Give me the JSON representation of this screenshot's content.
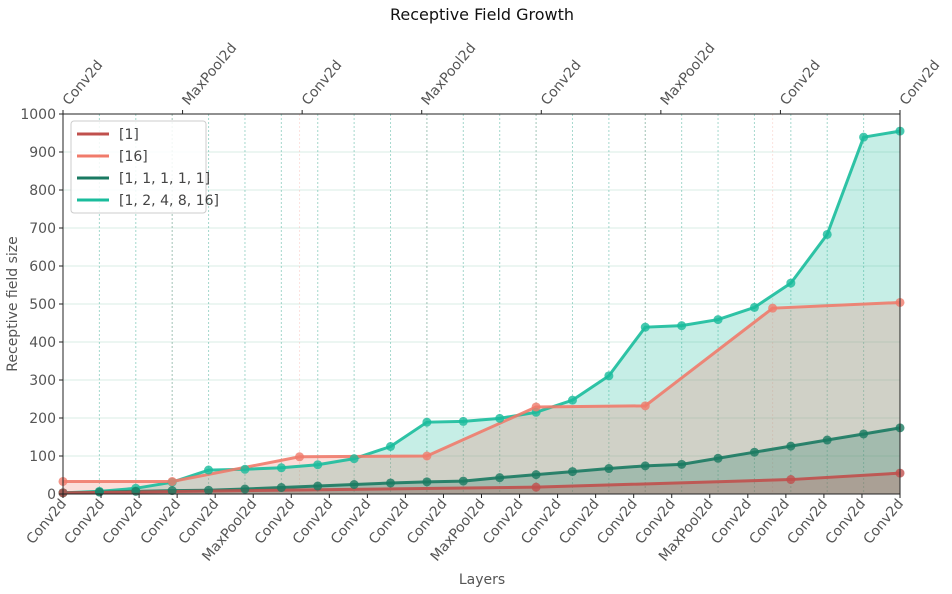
{
  "chart_data": {
    "type": "line",
    "title": "Receptive Field Growth",
    "xlabel": "Layers",
    "ylabel": "Receptive field size",
    "ylim": [
      0,
      1000
    ],
    "yticks": [
      0,
      100,
      200,
      300,
      400,
      500,
      600,
      700,
      800,
      900,
      1000
    ],
    "grid": true,
    "legend_position": "top-left",
    "series": [
      {
        "name": "[1]",
        "color": "#c0504d",
        "x": [
          0,
          13,
          20,
          23
        ],
        "layer_labels": [
          "Conv2d",
          "Conv2d",
          "Conv2d",
          "Conv2d"
        ],
        "values": [
          3,
          18,
          38,
          55
        ]
      },
      {
        "name": "[16]",
        "color": "#f07b6b",
        "x": [
          0,
          3,
          6.5,
          10,
          13,
          16,
          19.5,
          23
        ],
        "layer_labels": [
          "Conv2d",
          "Conv2d",
          "Conv2d",
          "Conv2d",
          "Conv2d",
          "MaxPool2d",
          "Conv2d",
          "Conv2d"
        ],
        "values": [
          33,
          33,
          98,
          100,
          229,
          232,
          489,
          504
        ]
      },
      {
        "name": "[1, 1, 1, 1, 1]",
        "color": "#1a7a62",
        "x": [
          0,
          1,
          2,
          3,
          4,
          5,
          6,
          7,
          8,
          9,
          10,
          11,
          12,
          13,
          14,
          15,
          16,
          17,
          18,
          19,
          20,
          21,
          22,
          23
        ],
        "layer_labels": [
          "Conv2d",
          "Conv2d",
          "Conv2d",
          "Conv2d",
          "MaxPool2d",
          "Conv2d",
          "Conv2d",
          "Conv2d",
          "Conv2d",
          "Conv2d",
          "MaxPool2d",
          "Conv2d",
          "Conv2d",
          "Conv2d",
          "Conv2d",
          "Conv2d",
          "MaxPool2d",
          "Conv2d",
          "Conv2d",
          "Conv2d",
          "Conv2d",
          "Conv2d",
          "Conv2d",
          "Conv2d"
        ],
        "values": [
          3,
          5,
          7,
          9,
          10,
          13,
          17,
          21,
          25,
          29,
          32,
          34,
          43,
          51,
          59,
          67,
          74,
          78,
          94,
          110,
          126,
          142,
          158,
          174
        ]
      },
      {
        "name": "[1, 2, 4, 8, 16]",
        "color": "#1abc9c",
        "x": [
          0,
          1,
          2,
          3,
          4,
          5,
          6,
          7,
          8,
          9,
          10,
          11,
          12,
          13,
          14,
          15,
          16,
          17,
          18,
          19,
          20,
          21,
          22,
          23
        ],
        "layer_labels": [
          "Conv2d",
          "Conv2d",
          "Conv2d",
          "Conv2d",
          "MaxPool2d",
          "Conv2d",
          "Conv2d",
          "Conv2d",
          "Conv2d",
          "Conv2d",
          "MaxPool2d",
          "Conv2d",
          "Conv2d",
          "Conv2d",
          "Conv2d",
          "Conv2d",
          "MaxPool2d",
          "Conv2d",
          "Conv2d",
          "Conv2d",
          "Conv2d",
          "Conv2d",
          "Conv2d",
          "Conv2d"
        ],
        "values": [
          3,
          7,
          15,
          31,
          63,
          65,
          69,
          77,
          93,
          125,
          189,
          191,
          199,
          215,
          247,
          311,
          439,
          443,
          459,
          491,
          555,
          683,
          939,
          955
        ]
      }
    ],
    "bottom_tick_labels": [
      "Conv2d",
      "Conv2d",
      "Conv2d",
      "Conv2d",
      "Conv2d",
      "MaxPool2d",
      "Conv2d",
      "Conv2d",
      "Conv2d",
      "Conv2d",
      "Conv2d",
      "MaxPool2d",
      "Conv2d",
      "Conv2d",
      "Conv2d",
      "Conv2d",
      "Conv2d",
      "MaxPool2d",
      "Conv2d",
      "Conv2d",
      "Conv2d",
      "Conv2d",
      "Conv2d"
    ],
    "top_tick_labels": [
      "Conv2d",
      "MaxPool2d",
      "Conv2d",
      "MaxPool2d",
      "Conv2d",
      "MaxPool2d",
      "Conv2d",
      "Conv2d"
    ]
  }
}
